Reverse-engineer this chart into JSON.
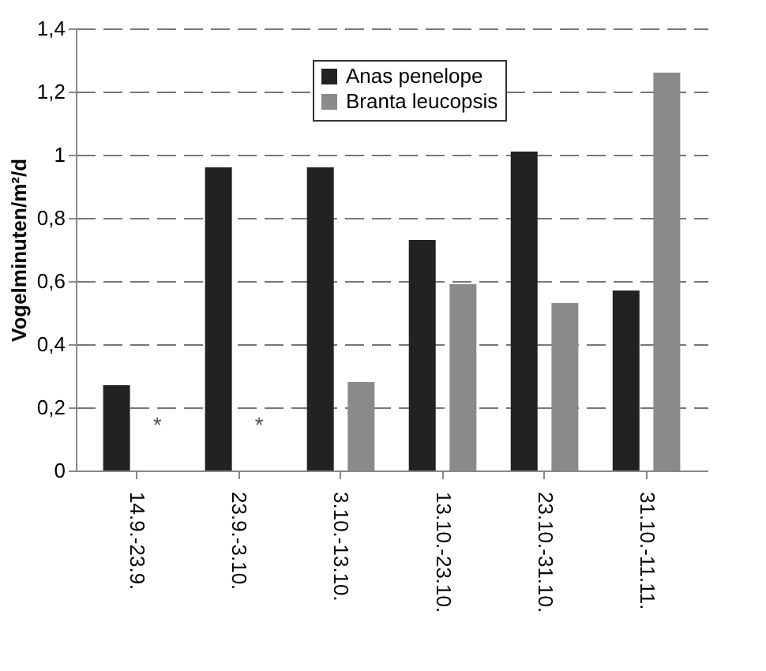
{
  "chart_data": {
    "type": "bar",
    "ylabel": "Vogelminuten/m²/d",
    "categories": [
      "14.9.-23.9.",
      "23.9.-3.10.",
      "3.10.-13.10.",
      "13.10.-23.10.",
      "23.10.-31.10.",
      "31.10.-11.11."
    ],
    "series": [
      {
        "name": "Anas penelope",
        "color": "#222222",
        "values": [
          0.27,
          0.96,
          0.96,
          0.73,
          1.01,
          0.57
        ]
      },
      {
        "name": "Branta leucopsis",
        "color": "#8a8a8a",
        "values": [
          null,
          null,
          0.28,
          0.59,
          0.53,
          1.26
        ]
      }
    ],
    "annotations": [
      {
        "text": "*",
        "x": "14.9.-23.9.",
        "y": 0.14
      },
      {
        "text": "*",
        "x": "23.9.-3.10.",
        "y": 0.14
      }
    ],
    "ylim": [
      0,
      1.4
    ],
    "yticks": [
      0,
      {
        "value": 0.2,
        "label": "0,2"
      },
      {
        "value": 0.4,
        "label": "0,4"
      },
      {
        "value": 0.6,
        "label": "0,6"
      },
      {
        "value": 0.8,
        "label": "0,8"
      },
      1,
      {
        "value": 1.2,
        "label": "1,2"
      },
      {
        "value": 1.4,
        "label": "1,4"
      }
    ],
    "grid": "y",
    "legend": "top"
  }
}
